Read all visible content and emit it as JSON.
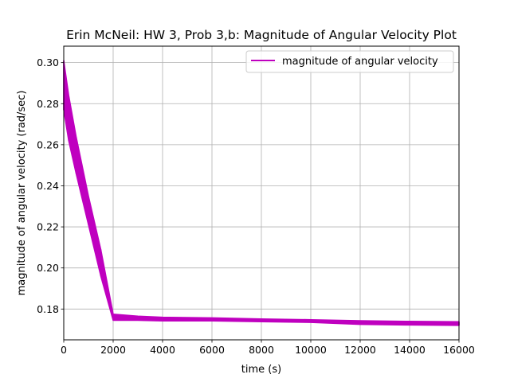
{
  "chart_data": {
    "type": "line",
    "title": "Erin McNeil: HW 3, Prob 3,b: Magnitude of Angular Velocity Plot",
    "xlabel": "time (s)",
    "ylabel": "magnitude of angular velocity (rad/sec)",
    "xlim": [
      0,
      16000
    ],
    "ylim": [
      0.165,
      0.308
    ],
    "xticks": [
      0,
      2000,
      4000,
      6000,
      8000,
      10000,
      12000,
      14000,
      16000
    ],
    "xtick_labels": [
      "0",
      "2000",
      "4000",
      "6000",
      "8000",
      "10000",
      "12000",
      "14000",
      "16000"
    ],
    "yticks": [
      0.18,
      0.2,
      0.22,
      0.24,
      0.26,
      0.28,
      0.3
    ],
    "ytick_labels": [
      "0.18",
      "0.20",
      "0.22",
      "0.24",
      "0.26",
      "0.28",
      "0.30"
    ],
    "grid": true,
    "legend_position": "top-right",
    "series": [
      {
        "name": "magnitude of angular velocity",
        "color": "#bf00bf",
        "band": true,
        "x": [
          0,
          200,
          500,
          1000,
          1500,
          2000,
          3000,
          4000,
          6000,
          8000,
          10000,
          12000,
          14000,
          16000
        ],
        "upper": [
          0.301,
          0.284,
          0.264,
          0.235,
          0.209,
          0.1775,
          0.1765,
          0.176,
          0.1757,
          0.1752,
          0.1748,
          0.1743,
          0.174,
          0.1738
        ],
        "lower": [
          0.277,
          0.262,
          0.246,
          0.221,
          0.196,
          0.1745,
          0.1745,
          0.1742,
          0.1742,
          0.1738,
          0.1735,
          0.1725,
          0.1722,
          0.172
        ]
      }
    ]
  }
}
